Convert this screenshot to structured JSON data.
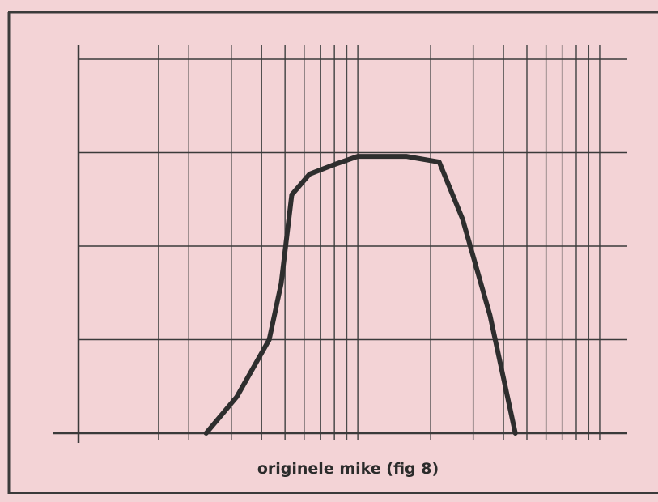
{
  "chart_data": {
    "type": "line",
    "caption": "originele mike (fig 8)",
    "log_x": true,
    "grid": true,
    "color": "#2e2e2e",
    "xlim": [
      70,
      13000
    ],
    "xticks": [
      150,
      200,
      300,
      400,
      500,
      600,
      700,
      800,
      900,
      1000,
      2000,
      3000,
      4000,
      5000,
      6000,
      7000,
      8000,
      9000,
      10000
    ],
    "ylim": [
      0,
      42
    ],
    "yticks": [
      0,
      10,
      20,
      30,
      40
    ],
    "series": [
      {
        "x": [
          236,
          316,
          430,
          482,
          533,
          631,
          794,
          1000,
          1585,
          2170,
          2710,
          3520,
          4480
        ],
        "values": [
          0,
          3.9,
          10,
          16,
          25.5,
          27.7,
          28.7,
          29.6,
          29.6,
          29,
          22.9,
          12.6,
          0
        ]
      }
    ]
  }
}
